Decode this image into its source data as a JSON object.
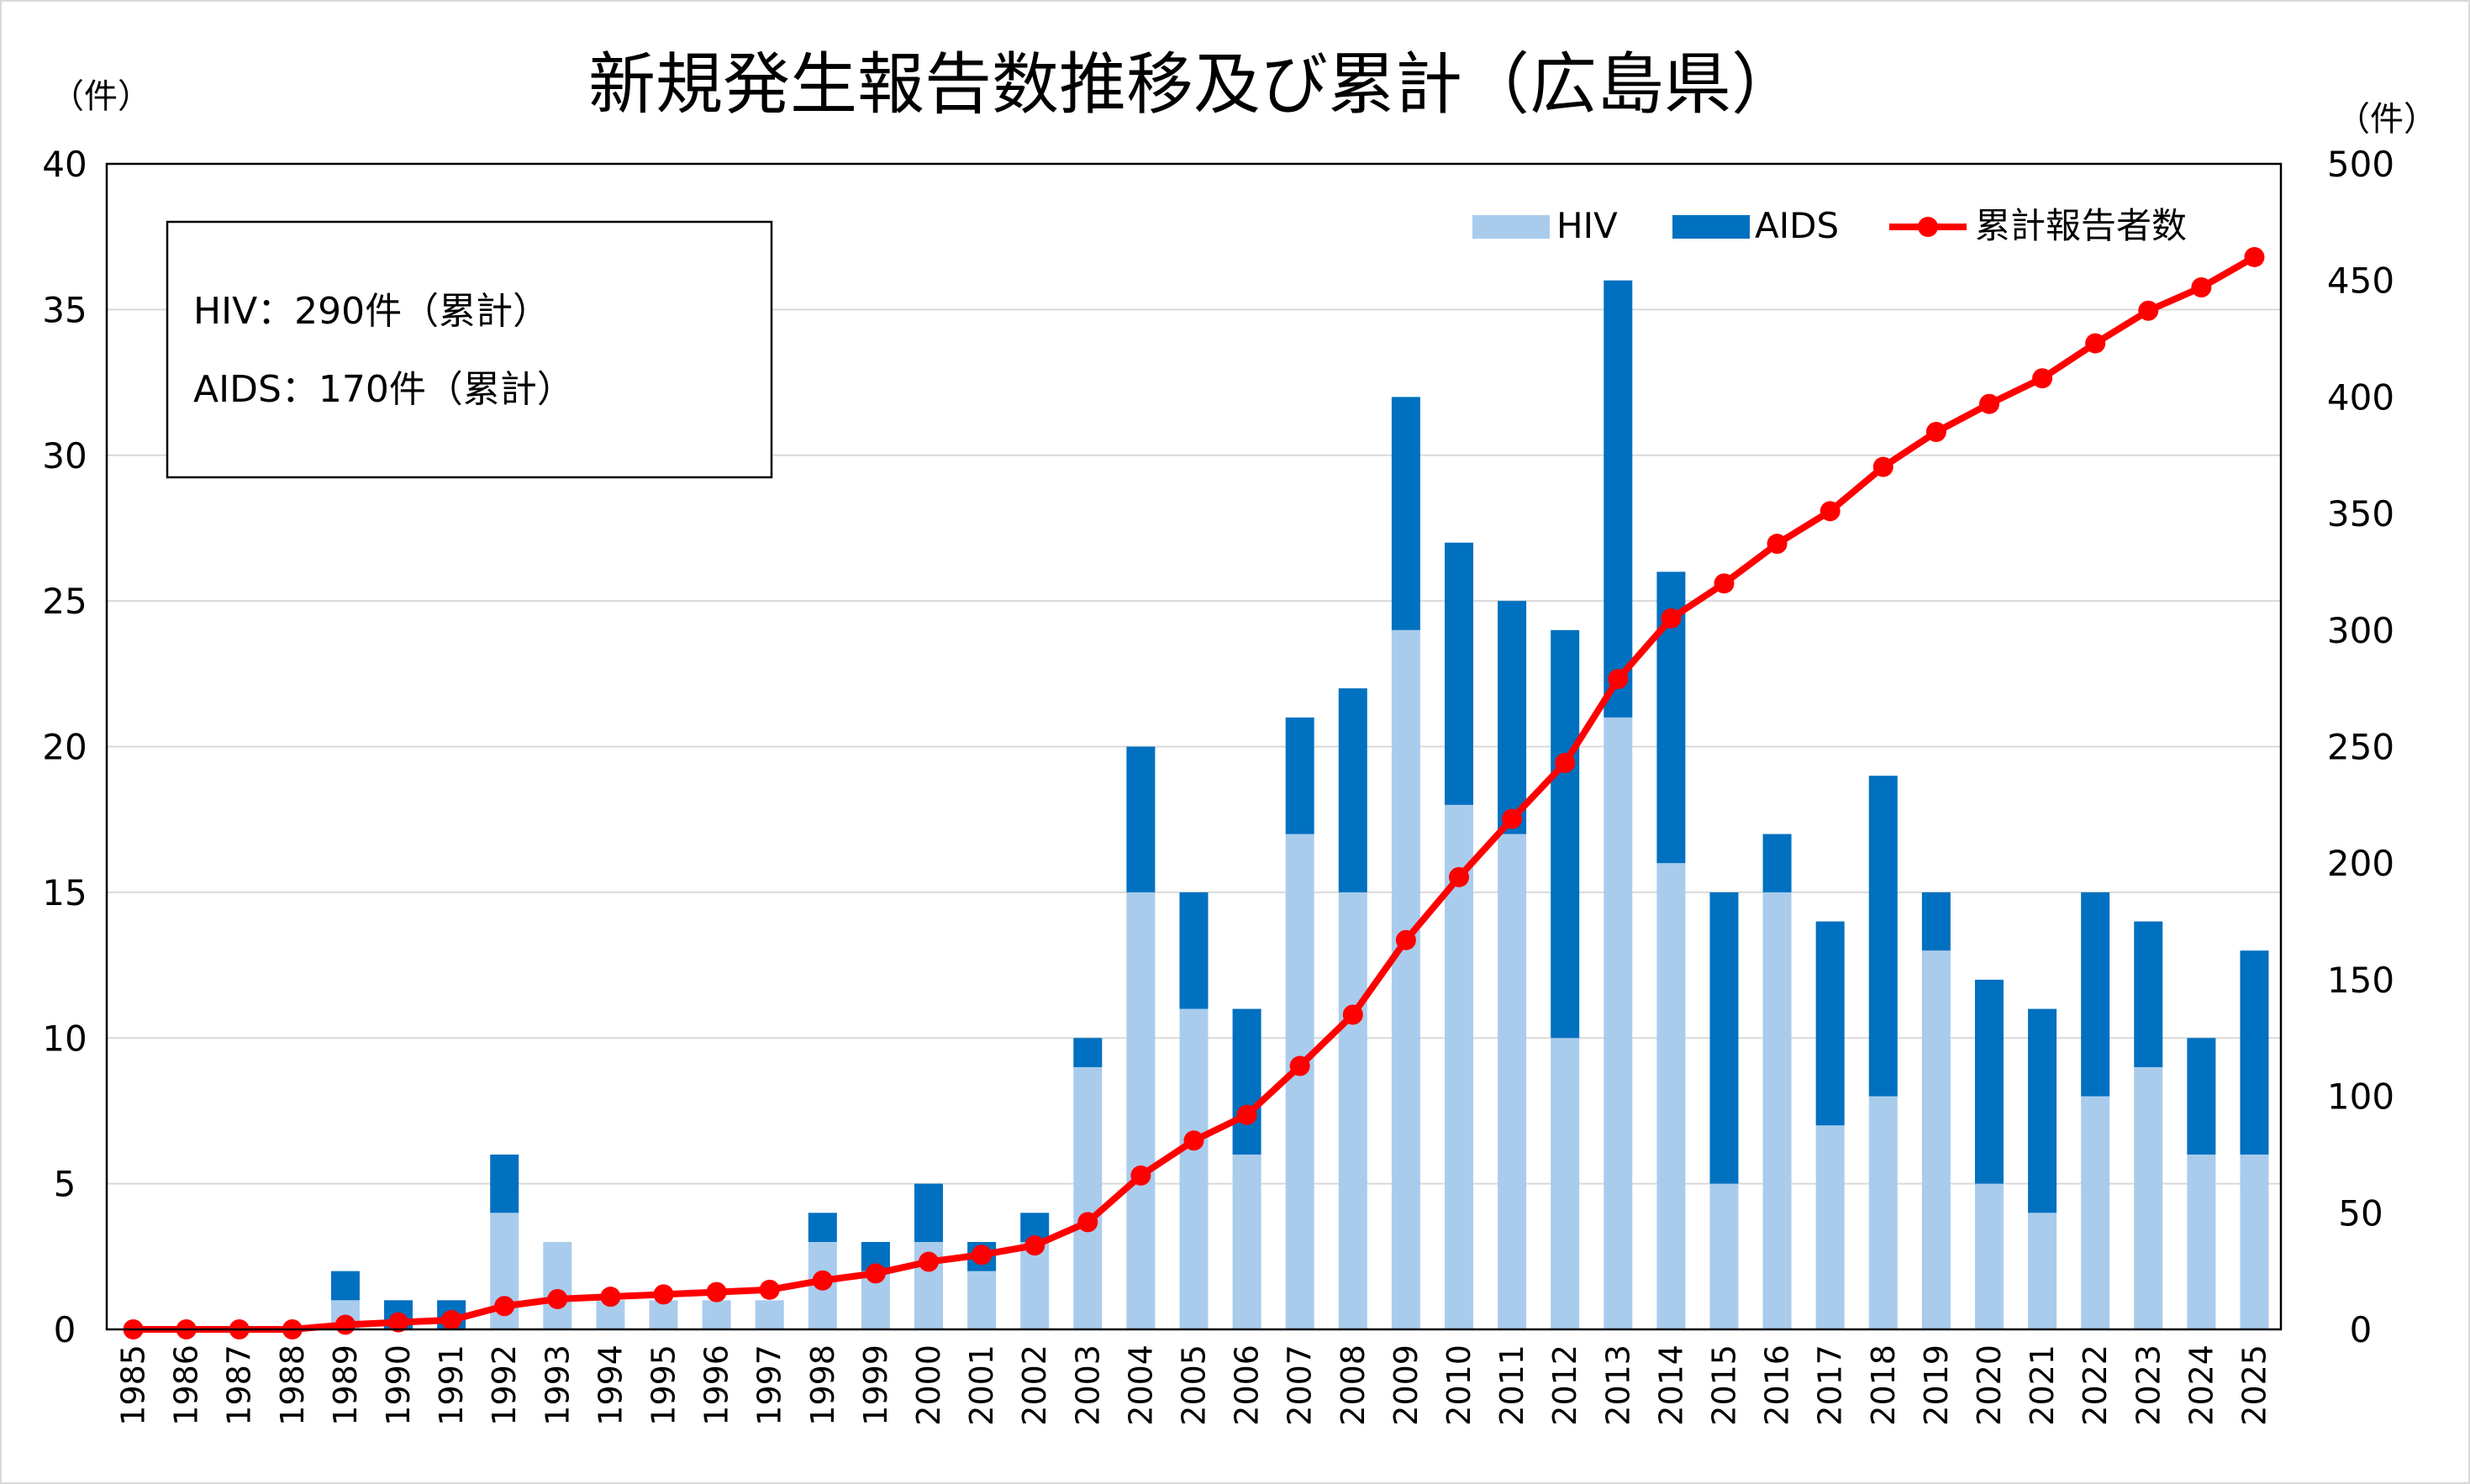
{
  "chart_data": {
    "type": "bar",
    "stacked": true,
    "title": "新規発生報告数推移及び累計（広島県）",
    "y_left_unit": "（件）",
    "y_right_unit": "（件）",
    "ylim_left": [
      0,
      40
    ],
    "ylim_right": [
      0,
      500
    ],
    "yticks_left": [
      0,
      5,
      10,
      15,
      20,
      25,
      30,
      35,
      40
    ],
    "yticks_right": [
      0,
      50,
      100,
      150,
      200,
      250,
      300,
      350,
      400,
      450,
      500
    ],
    "grid": true,
    "legend_position": "top-right",
    "categories": [
      "1985",
      "1986",
      "1987",
      "1988",
      "1989",
      "1990",
      "1991",
      "1992",
      "1993",
      "1994",
      "1995",
      "1996",
      "1997",
      "1998",
      "1999",
      "2000",
      "2001",
      "2002",
      "2003",
      "2004",
      "2005",
      "2006",
      "2007",
      "2008",
      "2009",
      "2010",
      "2011",
      "2012",
      "2013",
      "2014",
      "2015",
      "2016",
      "2017",
      "2018",
      "2019",
      "2020",
      "2021",
      "2022",
      "2023",
      "2024",
      "2025"
    ],
    "series": [
      {
        "name": "HIV",
        "type": "bar",
        "axis": "left",
        "color": "#A9CCEC",
        "values": [
          0,
          0,
          0,
          0,
          1,
          0,
          0,
          4,
          3,
          1,
          1,
          1,
          1,
          3,
          2,
          3,
          2,
          3,
          9,
          15,
          11,
          6,
          17,
          15,
          24,
          18,
          17,
          10,
          21,
          16,
          5,
          15,
          7,
          8,
          13,
          5,
          4,
          8,
          9,
          6,
          6
        ]
      },
      {
        "name": "AIDS",
        "type": "bar",
        "axis": "left",
        "color": "#0070C0",
        "values": [
          0,
          0,
          0,
          0,
          1,
          1,
          1,
          2,
          0,
          0,
          0,
          0,
          0,
          1,
          1,
          2,
          1,
          1,
          1,
          5,
          4,
          5,
          4,
          7,
          8,
          9,
          8,
          14,
          15,
          10,
          10,
          2,
          7,
          11,
          2,
          7,
          7,
          7,
          5,
          4,
          7
        ]
      },
      {
        "name": "累計報告者数",
        "type": "line",
        "axis": "right",
        "color": "#FF0000",
        "values": [
          0,
          0,
          0,
          0,
          2,
          3,
          4,
          10,
          13,
          14,
          15,
          16,
          17,
          21,
          24,
          29,
          32,
          36,
          46,
          66,
          81,
          92,
          113,
          135,
          167,
          194,
          219,
          243,
          279,
          305,
          320,
          337,
          351,
          370,
          385,
          397,
          408,
          423,
          437,
          447,
          460
        ]
      }
    ],
    "annotation": {
      "lines": [
        "HIV：290件（累計）",
        "AIDS：170件（累計）"
      ]
    }
  }
}
